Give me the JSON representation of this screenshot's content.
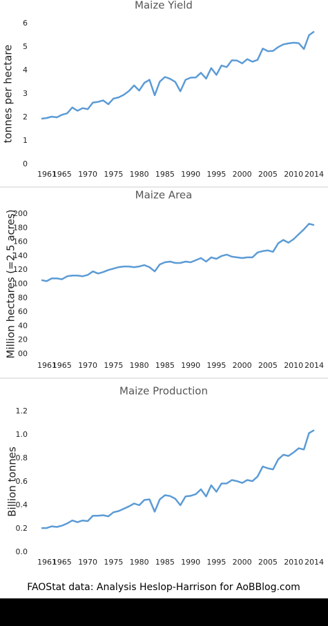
{
  "chart_data": [
    {
      "type": "line",
      "title": "Maize Yield",
      "y_label": "tonnes per hectare",
      "x": [
        1961,
        1962,
        1963,
        1964,
        1965,
        1966,
        1967,
        1968,
        1969,
        1970,
        1971,
        1972,
        1973,
        1974,
        1975,
        1976,
        1977,
        1978,
        1979,
        1980,
        1981,
        1982,
        1983,
        1984,
        1985,
        1986,
        1987,
        1988,
        1989,
        1990,
        1991,
        1992,
        1993,
        1994,
        1995,
        1996,
        1997,
        1998,
        1999,
        2000,
        2001,
        2002,
        2003,
        2004,
        2005,
        2006,
        2007,
        2008,
        2009,
        2010,
        2011,
        2012,
        2013,
        2014
      ],
      "values": [
        1.94,
        1.97,
        2.03,
        2.0,
        2.11,
        2.17,
        2.42,
        2.28,
        2.39,
        2.35,
        2.63,
        2.66,
        2.72,
        2.56,
        2.8,
        2.85,
        2.96,
        3.12,
        3.36,
        3.14,
        3.47,
        3.6,
        2.94,
        3.52,
        3.72,
        3.64,
        3.51,
        3.11,
        3.6,
        3.69,
        3.7,
        3.9,
        3.65,
        4.1,
        3.81,
        4.21,
        4.14,
        4.43,
        4.42,
        4.3,
        4.48,
        4.37,
        4.45,
        4.93,
        4.82,
        4.83,
        4.99,
        5.11,
        5.15,
        5.18,
        5.16,
        4.91,
        5.5,
        5.66
      ],
      "color": "#5b9bd5",
      "xlim": [
        1961,
        2014
      ],
      "xticks": [
        1961,
        1965,
        1970,
        1975,
        1980,
        1985,
        1990,
        1995,
        2000,
        2005,
        2010,
        2014
      ],
      "ylim": [
        0,
        6
      ],
      "yticks": [
        0,
        1,
        2,
        3,
        4,
        5,
        6
      ]
    },
    {
      "type": "line",
      "title": "Maize Area",
      "y_label": "Million hectares (=2.5 acres)",
      "x": [
        1961,
        1962,
        1963,
        1964,
        1965,
        1966,
        1967,
        1968,
        1969,
        1970,
        1971,
        1972,
        1973,
        1974,
        1975,
        1976,
        1977,
        1978,
        1979,
        1980,
        1981,
        1982,
        1983,
        1984,
        1985,
        1986,
        1987,
        1988,
        1989,
        1990,
        1991,
        1992,
        1993,
        1994,
        1995,
        1996,
        1997,
        1998,
        1999,
        2000,
        2001,
        2002,
        2003,
        2004,
        2005,
        2006,
        2007,
        2008,
        2009,
        2010,
        2011,
        2012,
        2013,
        2014
      ],
      "values": [
        105.6,
        104,
        108,
        108,
        106.8,
        111,
        112,
        112,
        111,
        113,
        118,
        115,
        117,
        120,
        122,
        124,
        125,
        125,
        124,
        125,
        127,
        124,
        118,
        128,
        131,
        132,
        130,
        130,
        132,
        131,
        134,
        137,
        132,
        138,
        136,
        140,
        142,
        139,
        138,
        137,
        138,
        138,
        145,
        147,
        148,
        146,
        158,
        163,
        159,
        164,
        171,
        178,
        186,
        184
      ],
      "color": "#5b9bd5",
      "xlim": [
        1961,
        2014
      ],
      "xticks": [
        1961,
        1965,
        1970,
        1975,
        1980,
        1985,
        1990,
        1995,
        2000,
        2005,
        2010,
        2014
      ],
      "ylim": [
        0,
        200
      ],
      "yticks": [
        {
          "value": 0,
          "label": "00"
        },
        20,
        40,
        60,
        80,
        100,
        120,
        140,
        160,
        180,
        200
      ]
    },
    {
      "type": "line",
      "title": "Maize Production",
      "y_label": "Billion tonnes",
      "x": [
        1961,
        1962,
        1963,
        1964,
        1965,
        1966,
        1967,
        1968,
        1969,
        1970,
        1971,
        1972,
        1973,
        1974,
        1975,
        1976,
        1977,
        1978,
        1979,
        1980,
        1981,
        1982,
        1983,
        1984,
        1985,
        1986,
        1987,
        1988,
        1989,
        1990,
        1991,
        1992,
        1993,
        1994,
        1995,
        1996,
        1997,
        1998,
        1999,
        2000,
        2001,
        2002,
        2003,
        2004,
        2005,
        2006,
        2007,
        2008,
        2009,
        2010,
        2011,
        2012,
        2013,
        2014
      ],
      "values": [
        0.205,
        0.205,
        0.22,
        0.215,
        0.226,
        0.245,
        0.27,
        0.255,
        0.27,
        0.265,
        0.31,
        0.31,
        0.315,
        0.305,
        0.34,
        0.35,
        0.37,
        0.39,
        0.415,
        0.4,
        0.445,
        0.45,
        0.345,
        0.45,
        0.485,
        0.478,
        0.455,
        0.4,
        0.475,
        0.48,
        0.495,
        0.535,
        0.475,
        0.57,
        0.515,
        0.585,
        0.585,
        0.615,
        0.605,
        0.59,
        0.615,
        0.605,
        0.645,
        0.73,
        0.715,
        0.705,
        0.79,
        0.83,
        0.82,
        0.85,
        0.885,
        0.875,
        1.015,
        1.04
      ],
      "color": "#5b9bd5",
      "xlim": [
        1961,
        2014
      ],
      "xticks": [
        1961,
        1965,
        1970,
        1975,
        1980,
        1985,
        1990,
        1995,
        2000,
        2005,
        2010,
        2014
      ],
      "ylim": [
        0,
        1.2
      ],
      "yticks": [
        {
          "value": 0,
          "label": "0.0"
        },
        0.2,
        0.4,
        0.6,
        0.8,
        {
          "value": 1,
          "label": "1.0"
        },
        1.2
      ]
    }
  ],
  "footer": "FAOStat data: Analysis Heslop-Harrison for AoBBlog.com"
}
